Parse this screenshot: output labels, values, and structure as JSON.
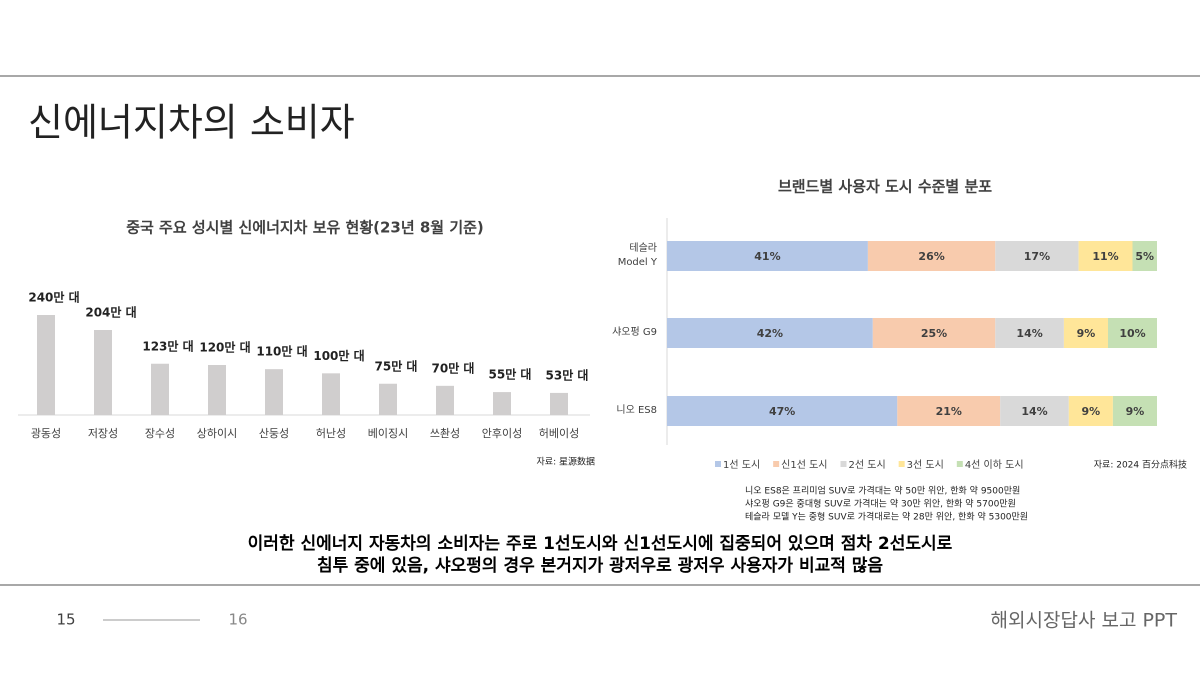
{
  "slide": {
    "title": "신에너지차의 소비자",
    "summary": [
      "이러한 신에너지 자동차의 소비자는 주로 1선도시와 신1선도시에 집중되어 있으며 점차 2선도시로",
      "침투 중에 있음, 샤오펑의 경우 본거지가 광저우로 광저우 사용자가 비교적 많음"
    ],
    "page_current": "15",
    "page_next": "16",
    "footer": "해외시장답사 보고 PPT"
  },
  "chart_data": [
    {
      "type": "bar",
      "title": "중국 주요 성시별 신에너지차 보유 현황(23년 8월 기준)",
      "categories": [
        "광동성",
        "저장성",
        "장수성",
        "상하이시",
        "산둥성",
        "허난성",
        "베이징시",
        "쓰촨성",
        "안후이성",
        "허베이성"
      ],
      "values": [
        240,
        204,
        123,
        120,
        110,
        100,
        75,
        70,
        55,
        53
      ],
      "value_labels": [
        "240만 대",
        "204만 대",
        "123만 대",
        "120만 대",
        "110만 대",
        "100만 대",
        "75만 대",
        "70만 대",
        "55만 대",
        "53만 대"
      ],
      "color": "#d0cece",
      "source": "자료: 星源数据"
    },
    {
      "type": "barh",
      "stacked": true,
      "title": "브랜드별 사용자 도시 수준별 분포",
      "categories": [
        "테슬라\nModel Y",
        "샤오펑 G9",
        "니오 ES8"
      ],
      "series": [
        {
          "name": "1선 도시",
          "color": "#b4c7e7",
          "values": [
            41,
            42,
            47
          ],
          "value_labels": [
            "41%",
            "42%",
            "47%"
          ]
        },
        {
          "name": "신1선 도시",
          "color": "#f8cbad",
          "values": [
            26,
            25,
            21
          ],
          "value_labels": [
            "26%",
            "25%",
            "21%"
          ]
        },
        {
          "name": "2선 도시",
          "color": "#d9d9d9",
          "values": [
            17,
            14,
            14
          ],
          "value_labels": [
            "17%",
            "14%",
            "14%"
          ]
        },
        {
          "name": "3선 도시",
          "color": "#ffe699",
          "values": [
            11,
            9,
            9
          ],
          "value_labels": [
            "11%",
            "9%",
            "9%"
          ]
        },
        {
          "name": "4선 이하 도시",
          "color": "#c5e0b4",
          "values": [
            5,
            10,
            9
          ],
          "value_labels": [
            "5%",
            "10%",
            "9%"
          ]
        }
      ],
      "legend": "bottom",
      "source": "자료: 2024 百分点科技",
      "notes": [
        "니오 ES8은 프리미엄 SUV로 가격대는 약 50만 위안, 한화 약 9500만원",
        "샤오펑 G9은 중대형 SUV로 가격대는 약 30만 위안, 한화 약 5700만원",
        "테슬라 모델 Y는 중형 SUV로 가격대로는 약 28만 위안, 한화 약 5300만원"
      ]
    }
  ]
}
